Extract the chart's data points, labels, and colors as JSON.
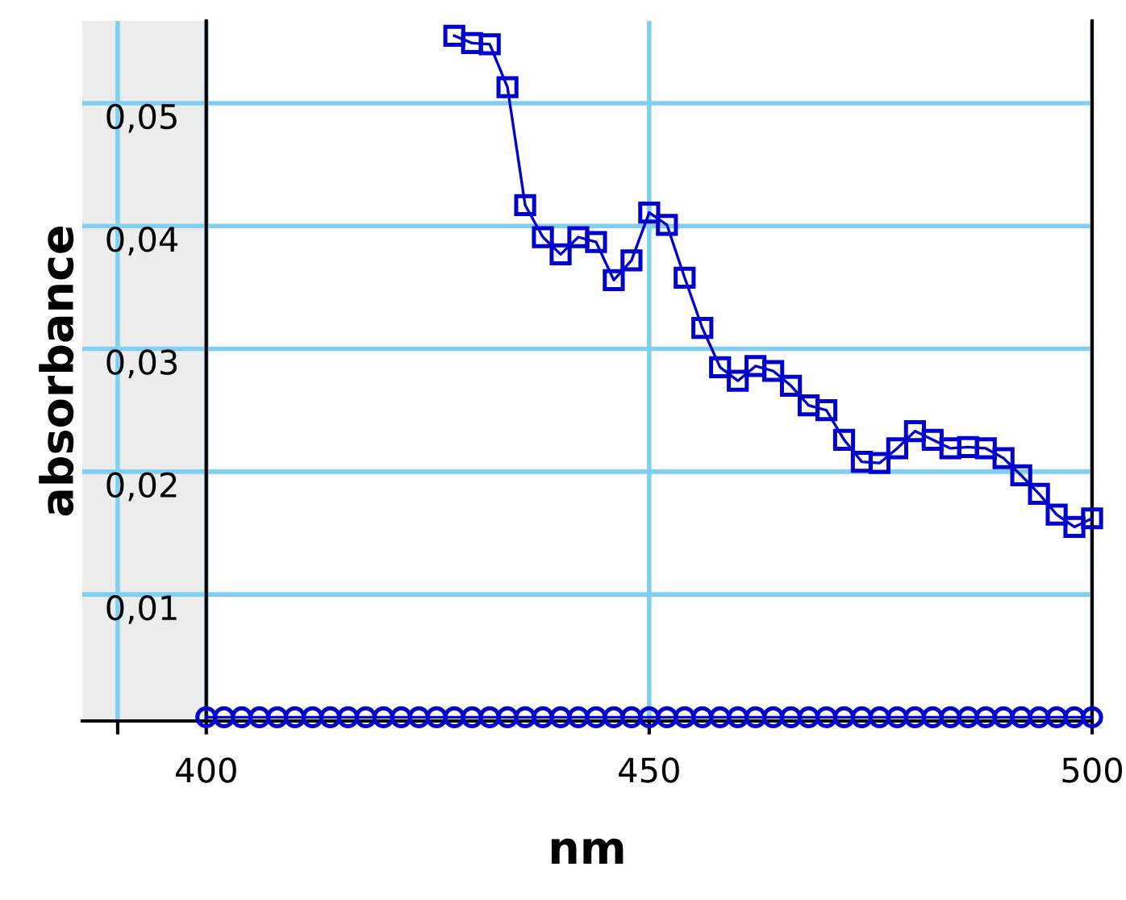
{
  "chart_data": {
    "type": "line",
    "xlabel": "nm",
    "ylabel": "absorbance",
    "xlim": [
      386,
      500
    ],
    "xticks": [
      {
        "value": 390,
        "label": null
      },
      400,
      450,
      500
    ],
    "ylim": [
      -0.0003,
      0.0567
    ],
    "yticks": [
      {
        "value": 0.01,
        "label": "0,01"
      },
      {
        "value": 0.02,
        "label": "0,02"
      },
      {
        "value": 0.03,
        "label": "0,03"
      },
      {
        "value": 0.04,
        "label": "0,04"
      },
      {
        "value": 0.05,
        "label": "0,05"
      }
    ],
    "grid": true,
    "legend": false,
    "line_style": "solid",
    "bands": [
      {
        "axis": "x",
        "from": 386,
        "to": 400,
        "color": "#ececec"
      }
    ],
    "series": [
      {
        "color": "#0000cc",
        "marker": "square",
        "x": [
          428,
          430,
          432,
          434,
          436,
          438,
          440,
          442,
          444,
          446,
          448,
          450,
          452,
          454,
          456,
          458,
          460,
          462,
          464,
          466,
          468,
          470,
          472,
          474,
          476,
          478,
          480,
          482,
          484,
          486,
          488,
          490,
          492,
          494,
          496,
          498,
          500
        ],
        "values": [
          0.0555,
          0.0549,
          0.0548,
          0.0513,
          0.0417,
          0.0391,
          0.0377,
          0.0391,
          0.0387,
          0.0356,
          0.0372,
          0.0411,
          0.0401,
          0.0358,
          0.0317,
          0.0285,
          0.0274,
          0.0286,
          0.0282,
          0.027,
          0.0254,
          0.025,
          0.0226,
          0.0208,
          0.0207,
          0.0219,
          0.0233,
          0.0226,
          0.0219,
          0.022,
          0.0219,
          0.0211,
          0.0197,
          0.0182,
          0.0165,
          0.0155,
          0.0162
        ]
      },
      {
        "color": "#0000cc",
        "marker": "circle",
        "x": [
          400,
          402,
          404,
          406,
          408,
          410,
          412,
          414,
          416,
          418,
          420,
          422,
          424,
          426,
          428,
          430,
          432,
          434,
          436,
          438,
          440,
          442,
          444,
          446,
          448,
          450,
          452,
          454,
          456,
          458,
          460,
          462,
          464,
          466,
          468,
          470,
          472,
          474,
          476,
          478,
          480,
          482,
          484,
          486,
          488,
          490,
          492,
          494,
          496,
          498,
          500
        ],
        "values": [
          0,
          0,
          0,
          0,
          0,
          0,
          0,
          0,
          0,
          0,
          0,
          0,
          0,
          0,
          0,
          0,
          0,
          0,
          0,
          0,
          0,
          0,
          0,
          0,
          0,
          0,
          0,
          0,
          0,
          0,
          0,
          0,
          0,
          0,
          0,
          0,
          0,
          0,
          0,
          0,
          0,
          0,
          0,
          0,
          0,
          0,
          0,
          0,
          0,
          0,
          0
        ]
      }
    ]
  }
}
